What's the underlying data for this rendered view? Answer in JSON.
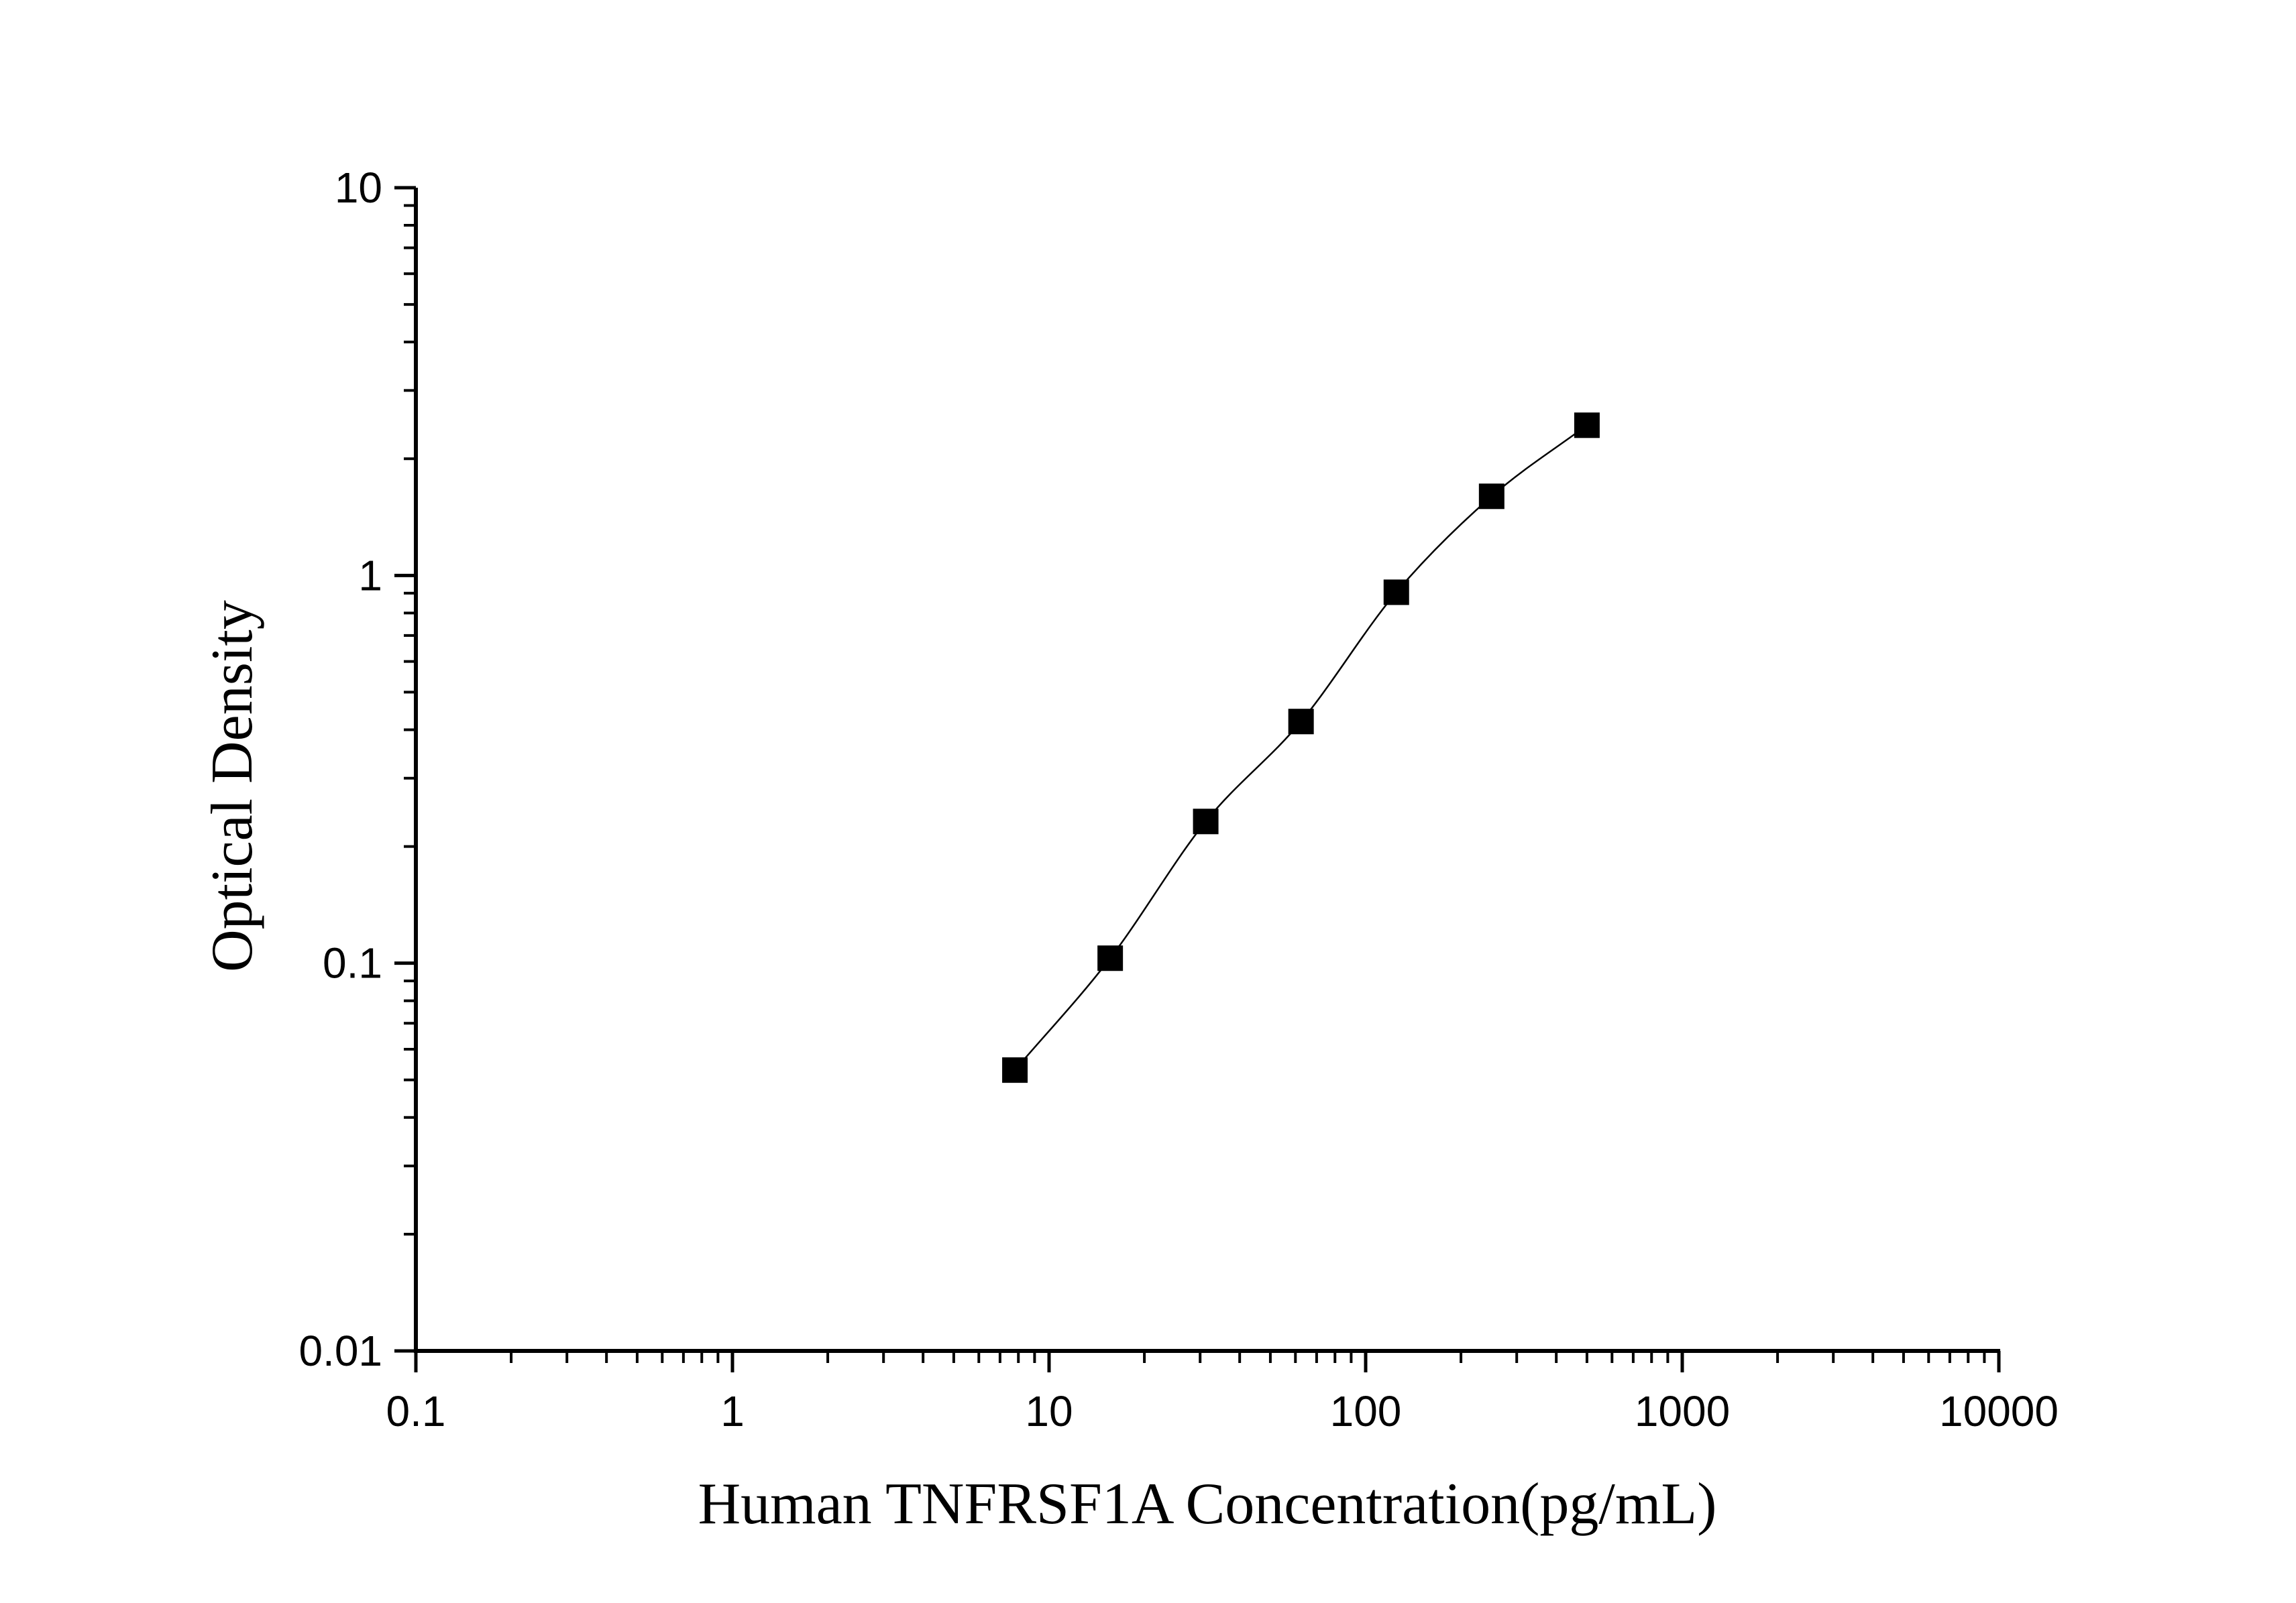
{
  "chart_data": {
    "type": "scatter",
    "xlabel": "Human TNFRSF1A Concentration(pg/mL)",
    "ylabel": "Optical Density",
    "xscale": "log",
    "yscale": "log",
    "xlim": [
      0.1,
      10000
    ],
    "ylim": [
      0.01,
      10
    ],
    "xticks": [
      0.1,
      1,
      10,
      100,
      1000,
      10000
    ],
    "xtick_labels": [
      "0.1",
      "1",
      "10",
      "100",
      "1000",
      "10000"
    ],
    "yticks": [
      0.01,
      0.1,
      1,
      10
    ],
    "ytick_labels": [
      "0.01",
      "0.1",
      "1",
      "10"
    ],
    "grid": false,
    "marker": "square",
    "fit_curve": true,
    "series": [
      {
        "x": [
          7.8,
          15.6,
          31.25,
          62.5,
          125,
          250,
          500
        ],
        "y": [
          0.053,
          0.103,
          0.232,
          0.42,
          0.905,
          1.6,
          2.44
        ]
      }
    ],
    "colors": {
      "marker": "#000000",
      "line": "#000000",
      "axes": "#000000"
    }
  }
}
